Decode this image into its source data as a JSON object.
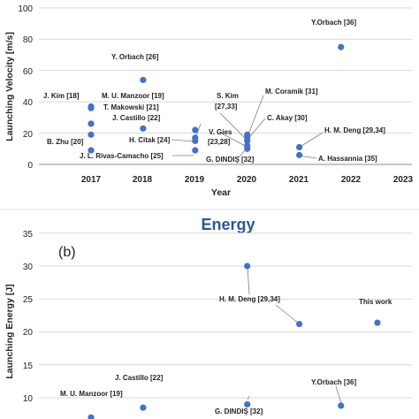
{
  "chart_data": [
    {
      "type": "scatter",
      "title": "",
      "xlabel": "Year",
      "ylabel": "Launching Velocity [m/s]",
      "xlim": [
        2016,
        2023
      ],
      "ylim": [
        0,
        100
      ],
      "grid": true,
      "xticks": [
        "2017",
        "2018",
        "2019",
        "2020",
        "2021",
        "2022",
        "2023"
      ],
      "yticks": [
        "0",
        "20",
        "40",
        "60",
        "80",
        "100"
      ],
      "points": [
        {
          "x": 2021.8,
          "y": 75,
          "label": "Y.Orbach [36]"
        },
        {
          "x": 2018.0,
          "y": 54,
          "label": "Y. Orbach [26]"
        },
        {
          "x": 2017.0,
          "y": 36,
          "label": "J. Kim [18]"
        },
        {
          "x": 2017.0,
          "y": 37,
          "label": "M. U. Manzoor [19]"
        },
        {
          "x": 2017.0,
          "y": 26,
          "label": "T. Makowski [21]"
        },
        {
          "x": 2017.0,
          "y": 19,
          "label": "B. Zhu [20]"
        },
        {
          "x": 2017.0,
          "y": 9,
          "label": ""
        },
        {
          "x": 2018.0,
          "y": 23,
          "label": "J. Castillo [22]"
        },
        {
          "x": 2019.0,
          "y": 22,
          "label": ""
        },
        {
          "x": 2019.0,
          "y": 17,
          "label": "H. Citak [24]"
        },
        {
          "x": 2019.0,
          "y": 15,
          "label": ""
        },
        {
          "x": 2019.0,
          "y": 9,
          "label": "J. L. Rivas-Camacho [25]"
        },
        {
          "x": 2020.0,
          "y": 19,
          "label": "S. Kim [27,33]"
        },
        {
          "x": 2020.0,
          "y": 17,
          "label": "M. Coramik [31]"
        },
        {
          "x": 2020.0,
          "y": 15,
          "label": "C. Akay [30]"
        },
        {
          "x": 2020.0,
          "y": 12,
          "label": "V. Gies [23,28]"
        },
        {
          "x": 2020.0,
          "y": 10,
          "label": "G. DINDIŞ [32]"
        },
        {
          "x": 2021.0,
          "y": 11,
          "label": "H. M. Deng [29,34]"
        },
        {
          "x": 2021.0,
          "y": 6,
          "label": "A. Hassannia [35]"
        }
      ]
    },
    {
      "type": "scatter",
      "title": "Energy",
      "panel_label": "(b)",
      "xlabel": "",
      "ylabel": "Launching Energy [J]",
      "ylim": [
        5,
        35
      ],
      "grid": true,
      "yticks": [
        "10",
        "15",
        "20",
        "25",
        "30",
        "35"
      ],
      "points": [
        {
          "x": 2020.0,
          "y": 30,
          "label": ""
        },
        {
          "x": 2021.0,
          "y": 21.2,
          "label": "H. M. Deng [29,34]"
        },
        {
          "x": 2022.5,
          "y": 21.4,
          "label": "This work"
        },
        {
          "x": 2018.0,
          "y": 8.5,
          "label": "J. Castillo [22]"
        },
        {
          "x": 2017.0,
          "y": 7,
          "label": "M. U. Manzoor [19]"
        },
        {
          "x": 2020.0,
          "y": 9,
          "label": "G. DINDIŞ [32]"
        },
        {
          "x": 2021.8,
          "y": 8.8,
          "label": "Y.Orbach [36]"
        }
      ]
    }
  ],
  "colors": {
    "marker": "#4472c4",
    "title": "#2f5597",
    "grid": "#d9d9d9",
    "axis": "#8c8c8c"
  }
}
